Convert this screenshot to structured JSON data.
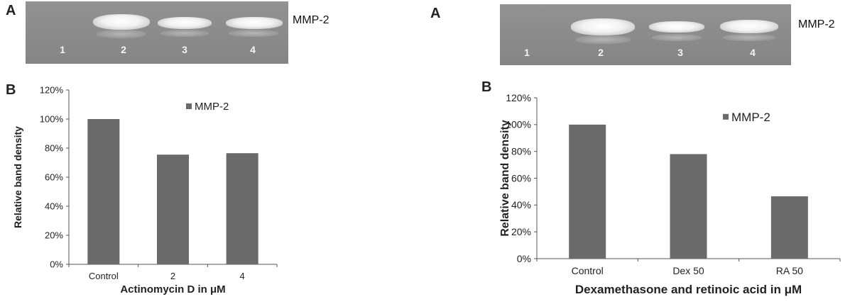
{
  "panels": [
    {
      "gel": {
        "panel_letter": "A",
        "label": "MMP-2",
        "lanes": [
          "1",
          "2",
          "3",
          "4"
        ]
      },
      "chart_panel_letter": "B"
    },
    {
      "gel": {
        "panel_letter": "A",
        "label": "MMP-2",
        "lanes": [
          "1",
          "2",
          "3",
          "4"
        ]
      },
      "chart_panel_letter": "B"
    }
  ],
  "chart_data": [
    {
      "type": "bar",
      "categories": [
        "Control",
        "2",
        "4"
      ],
      "series": [
        {
          "name": "MMP-2",
          "values": [
            100,
            75.5,
            76.5
          ],
          "color": "#6a6a6a"
        }
      ],
      "xlabel": "Actinomycin D in μM",
      "ylabel": "Relative band density",
      "ylim": [
        0,
        120
      ],
      "yticks": [
        "0%",
        "20%",
        "40%",
        "60%",
        "80%",
        "100%",
        "120%"
      ],
      "grid": false,
      "legend_position": "top-right"
    },
    {
      "type": "bar",
      "categories": [
        "Control",
        "Dex 50",
        "RA 50"
      ],
      "series": [
        {
          "name": "MMP-2",
          "values": [
            100,
            78,
            46.5
          ],
          "color": "#6a6a6a"
        }
      ],
      "xlabel": "Dexamethasone and retinoic acid in μM",
      "ylabel": "Relative band density",
      "ylim": [
        0,
        120
      ],
      "yticks": [
        "0%",
        "20%",
        "40%",
        "60%",
        "80%",
        "100%",
        "120%"
      ],
      "grid": false,
      "legend_position": "top-right"
    }
  ]
}
